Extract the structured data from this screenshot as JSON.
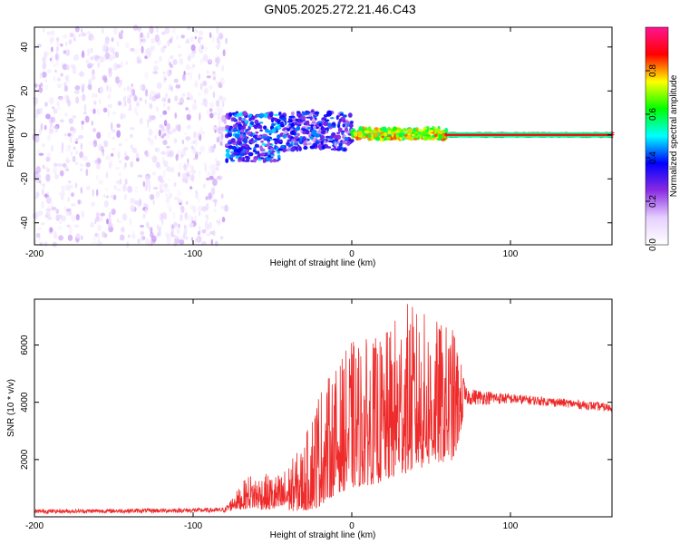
{
  "title": "GN05.2025.272.21.46.C43",
  "chart_data": [
    {
      "type": "heatmap",
      "name": "spectrogram",
      "xlabel": "Height of straight line (km)",
      "ylabel": "Frequency (Hz)",
      "xlim": [
        -200,
        164
      ],
      "ylim": [
        -50,
        49
      ],
      "xticks": [
        -200,
        -100,
        0,
        100
      ],
      "yticks": [
        -40,
        -20,
        0,
        20,
        40
      ],
      "colorbar": {
        "label": "Normalized spectral amplitude",
        "range": [
          0,
          1
        ],
        "ticks": [
          0.0,
          0.2,
          0.4,
          0.6,
          0.8
        ],
        "tick_labels": [
          "0.0",
          "0.2",
          "0.4",
          "0.6",
          "0.8"
        ],
        "colors": [
          "#ffffff",
          "#e6d0ff",
          "#8a2be2",
          "#0000ff",
          "#00ffff",
          "#00ff00",
          "#ffff00",
          "#ff0000",
          "#ff1493"
        ]
      },
      "regions": [
        {
          "x_range": [
            -200,
            -79
          ],
          "desc_amplitude": 0.1,
          "freq_spread": [
            -50,
            49
          ]
        },
        {
          "x_range": [
            -79,
            -45
          ],
          "desc_amplitude": 0.35,
          "freq_spread": [
            -12,
            10
          ]
        },
        {
          "x_range": [
            -45,
            0
          ],
          "desc_amplitude": 0.3,
          "freq_spread": [
            -8,
            9
          ]
        },
        {
          "x_range": [
            0,
            60
          ],
          "desc_amplitude": 0.7,
          "freq_spread": [
            -2,
            3
          ]
        },
        {
          "x_range": [
            60,
            164
          ],
          "desc_amplitude": 0.95,
          "freq_spread": [
            -1,
            1
          ]
        }
      ]
    },
    {
      "type": "line",
      "name": "snr",
      "xlabel": "Height of straight line (km)",
      "ylabel": "SNR (10 * v/v)",
      "xlim": [
        -200,
        164
      ],
      "ylim": [
        0,
        7600
      ],
      "xticks": [
        -200,
        -100,
        0,
        100
      ],
      "yticks": [
        2000,
        4000,
        6000
      ],
      "color": "#ee2a2a",
      "envelope": [
        {
          "x": -200,
          "base": 120,
          "peak": 260
        },
        {
          "x": -150,
          "base": 130,
          "peak": 280
        },
        {
          "x": -80,
          "base": 150,
          "peak": 320
        },
        {
          "x": -65,
          "base": 300,
          "peak": 1500
        },
        {
          "x": -45,
          "base": 200,
          "peak": 1500
        },
        {
          "x": -30,
          "base": 200,
          "peak": 2600
        },
        {
          "x": -22,
          "base": 300,
          "peak": 4500
        },
        {
          "x": -10,
          "base": 800,
          "peak": 5200
        },
        {
          "x": 0,
          "base": 1000,
          "peak": 6200
        },
        {
          "x": 20,
          "base": 1200,
          "peak": 6300
        },
        {
          "x": 33,
          "base": 1500,
          "peak": 7600
        },
        {
          "x": 50,
          "base": 1800,
          "peak": 7000
        },
        {
          "x": 65,
          "base": 2000,
          "peak": 6600
        },
        {
          "x": 72,
          "base": 3900,
          "peak": 4500
        },
        {
          "x": 100,
          "base": 3950,
          "peak": 4300
        },
        {
          "x": 130,
          "base": 3850,
          "peak": 4150
        },
        {
          "x": 164,
          "base": 3650,
          "peak": 3950
        }
      ]
    }
  ]
}
